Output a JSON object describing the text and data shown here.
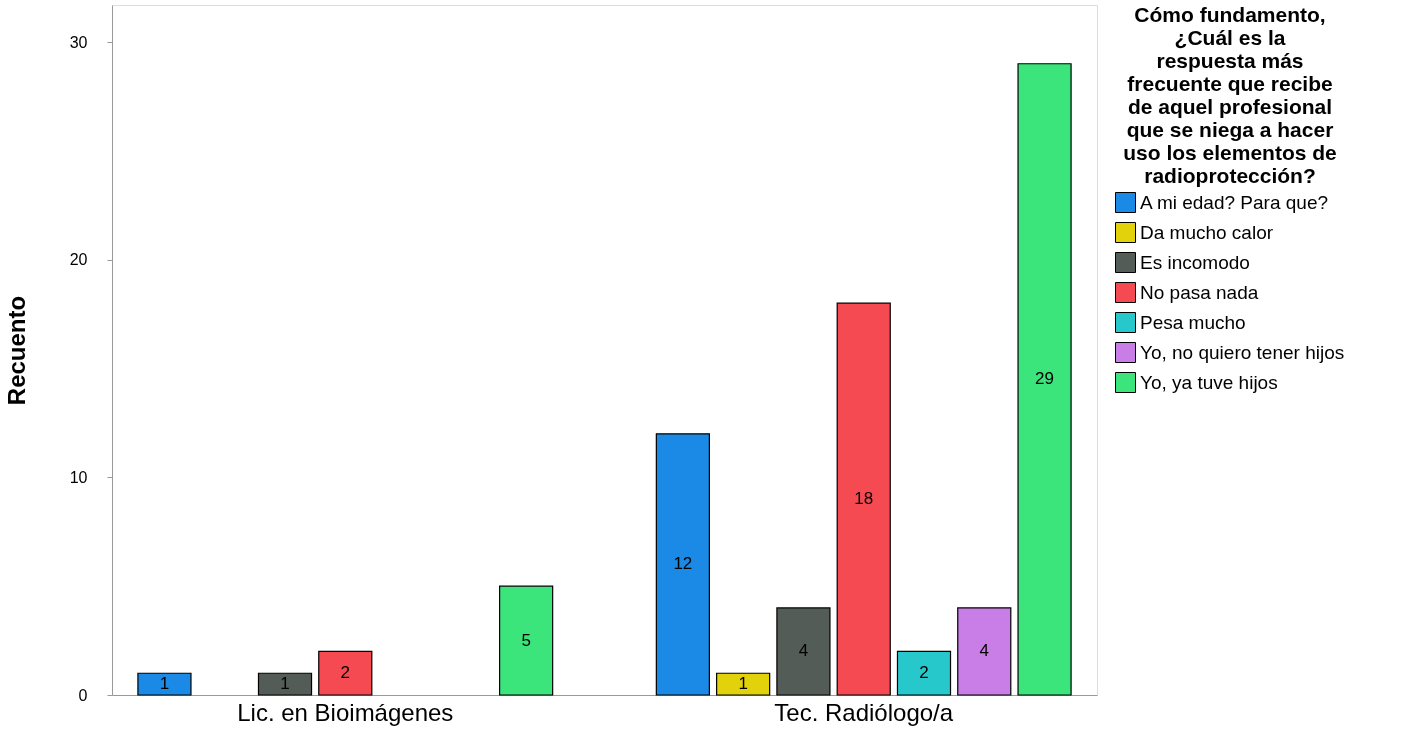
{
  "chart_data": {
    "type": "bar",
    "categories": [
      "Lic. en Bioimágenes",
      "Tec. Radiólogo/a"
    ],
    "series": [
      {
        "name": "A mi edad? Para que?",
        "color": "#1a8ae6",
        "values": [
          1,
          12
        ]
      },
      {
        "name": "Da mucho calor",
        "color": "#e2d20c",
        "values": [
          null,
          1
        ]
      },
      {
        "name": "Es incomodo",
        "color": "#545c58",
        "values": [
          1,
          4
        ]
      },
      {
        "name": "No pasa nada",
        "color": "#f54a52",
        "values": [
          2,
          18
        ]
      },
      {
        "name": "Pesa mucho",
        "color": "#27c8cc",
        "values": [
          null,
          2
        ]
      },
      {
        "name": "Yo, no quiero tener hijos",
        "color": "#c87ee6",
        "values": [
          null,
          4
        ]
      },
      {
        "name": "Yo, ya tuve hijos",
        "color": "#3ce47c",
        "values": [
          5,
          29
        ]
      }
    ],
    "ylabel": "Recuento",
    "legend_title": "Cómo fundamento, ¿Cuál es la respuesta más frecuente que recibe de aquel profesional que se niega a hacer uso los elementos de radioprotección?",
    "ylim": [
      0,
      31.7
    ],
    "yticks": [
      0,
      10,
      20,
      30
    ],
    "data_labels": true,
    "grid": false,
    "legend": "right"
  }
}
